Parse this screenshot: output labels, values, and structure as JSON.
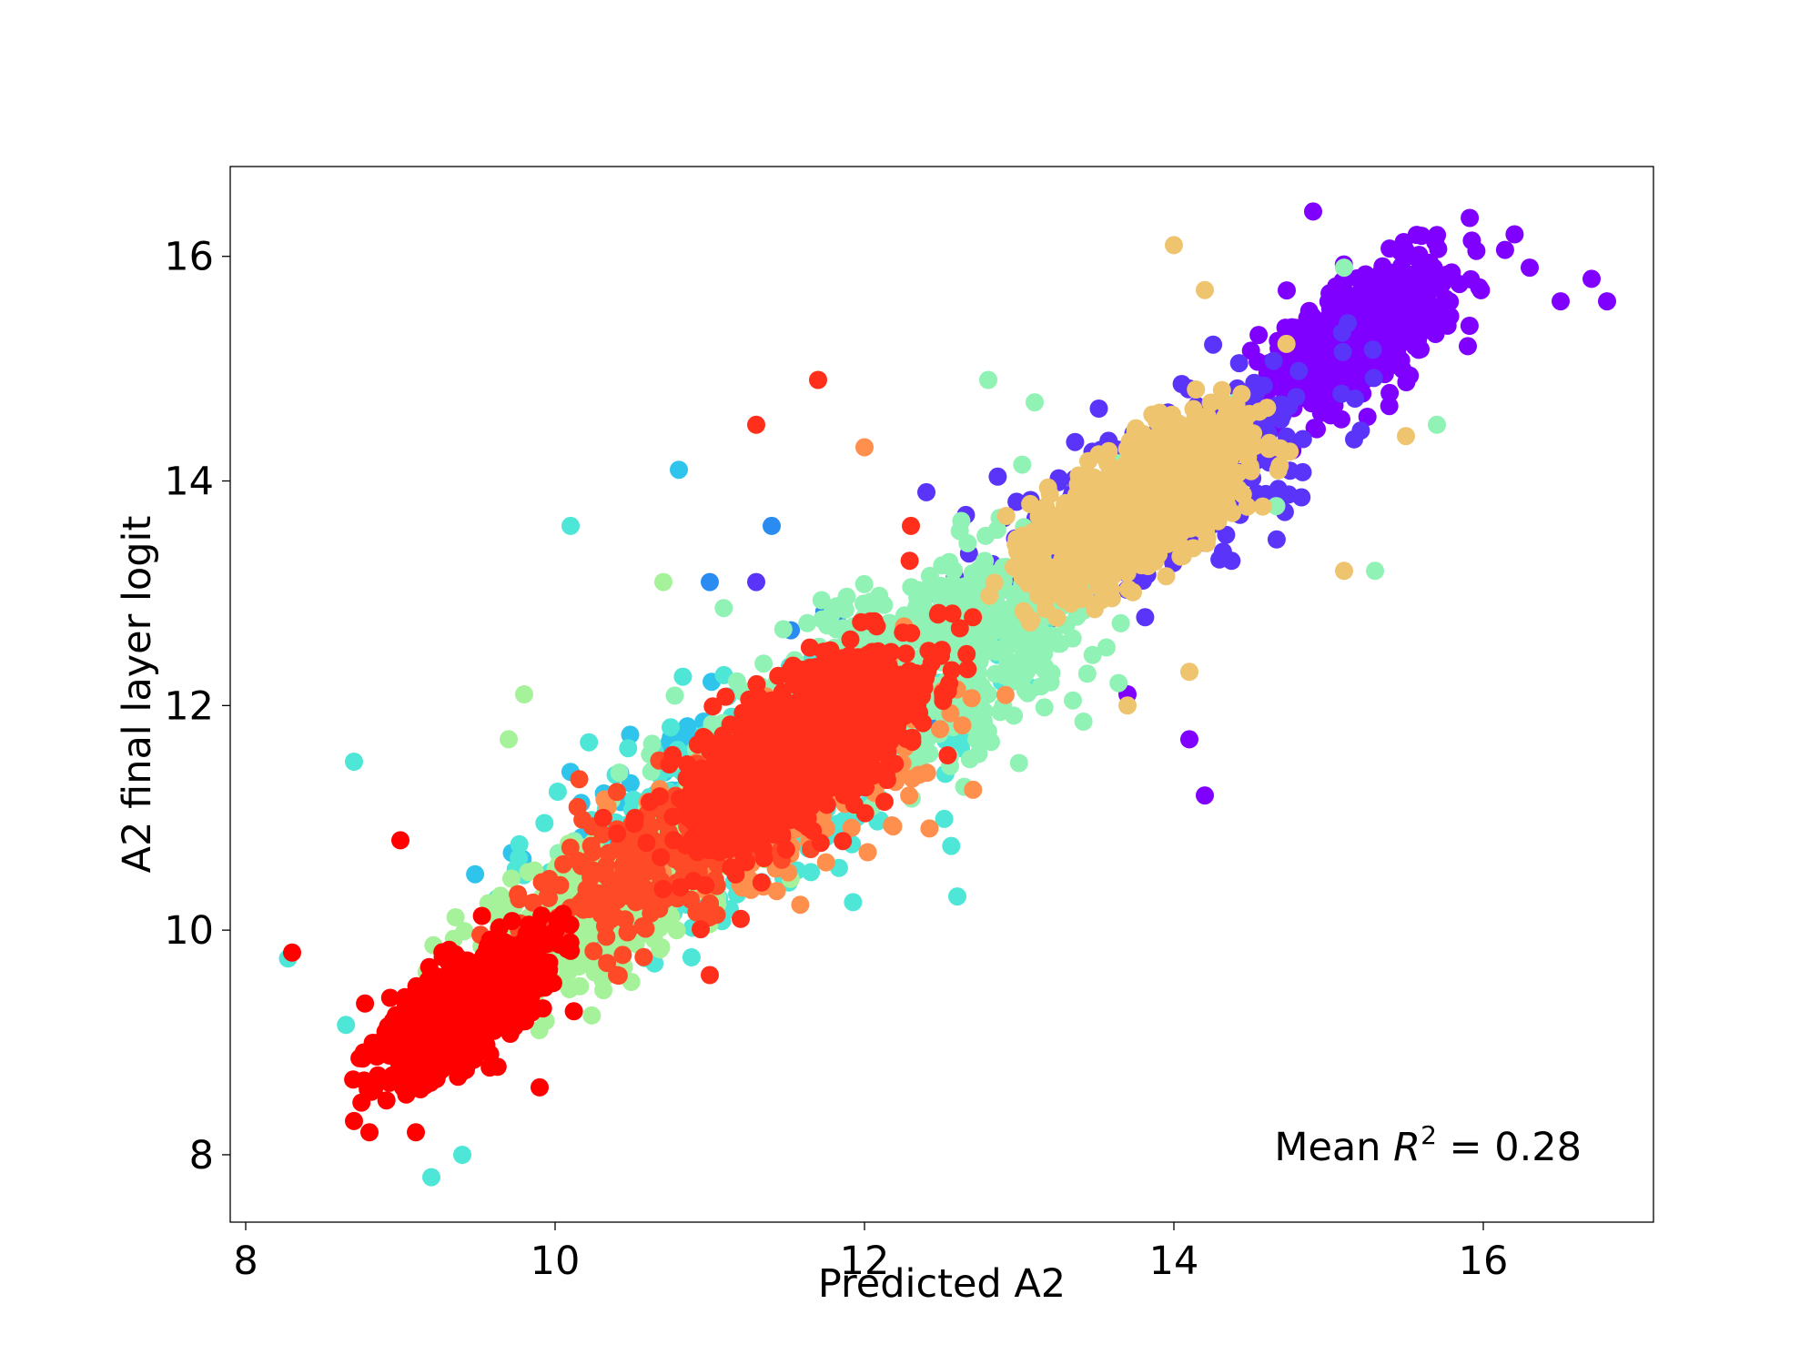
{
  "chart_data": {
    "type": "scatter",
    "title": "",
    "xlabel": "Predicted A2",
    "ylabel": "A2 final layer logit",
    "xlim": [
      7.9,
      17.1
    ],
    "ylim": [
      7.4,
      16.8
    ],
    "xticks": [
      8,
      10,
      12,
      14,
      16
    ],
    "yticks": [
      8,
      10,
      12,
      14,
      16
    ],
    "grid": false,
    "legend": "none",
    "annotation": {
      "prefix": "Mean ",
      "symbol": "R",
      "exponent": "2",
      "suffix": " = 0.28",
      "placement": "bottom-right"
    },
    "series": [
      {
        "color": "#7f00ff",
        "cx": 15.2,
        "cy": 15.3,
        "sx": 0.36,
        "sy": 0.4,
        "n": 700,
        "extremes": [
          [
            16.3,
            15.9
          ],
          [
            16.5,
            15.6
          ],
          [
            16.7,
            15.8
          ],
          [
            16.8,
            15.6
          ],
          [
            14.2,
            11.2
          ],
          [
            14.1,
            11.7
          ],
          [
            13.7,
            12.1
          ],
          [
            14.9,
            16.4
          ],
          [
            15.9,
            15.2
          ]
        ]
      },
      {
        "color": "#5a34f8",
        "cx": 13.9,
        "cy": 13.9,
        "sx": 0.6,
        "sy": 0.6,
        "n": 350,
        "extremes": [
          [
            12.4,
            13.9
          ],
          [
            11.9,
            12.4
          ],
          [
            11.3,
            13.1
          ]
        ]
      },
      {
        "color": "#2a8cf0",
        "cx": 11.8,
        "cy": 11.9,
        "sx": 0.55,
        "sy": 0.55,
        "n": 60,
        "extremes": [
          [
            11.0,
            13.1
          ],
          [
            11.4,
            13.6
          ]
        ]
      },
      {
        "color": "#2fc4ec",
        "cx": 11.0,
        "cy": 11.3,
        "sx": 0.6,
        "sy": 0.6,
        "n": 120,
        "extremes": [
          [
            10.8,
            14.1
          ]
        ]
      },
      {
        "color": "#4de6d7",
        "cx": 11.3,
        "cy": 11.2,
        "sx": 0.75,
        "sy": 0.7,
        "n": 380,
        "extremes": [
          [
            8.7,
            11.5
          ],
          [
            10.1,
            13.6
          ],
          [
            9.2,
            7.8
          ],
          [
            9.4,
            8.0
          ],
          [
            12.6,
            10.3
          ]
        ]
      },
      {
        "color": "#90f2b5",
        "cx": 12.3,
        "cy": 12.3,
        "sx": 0.8,
        "sy": 0.75,
        "n": 650,
        "extremes": [
          [
            12.8,
            14.9
          ],
          [
            13.1,
            14.7
          ],
          [
            14.4,
            14.7
          ],
          [
            15.1,
            15.9
          ],
          [
            15.3,
            13.2
          ],
          [
            15.7,
            14.5
          ]
        ]
      },
      {
        "color": "#a6f29a",
        "cx": 10.3,
        "cy": 10.2,
        "sx": 0.5,
        "sy": 0.5,
        "n": 450,
        "extremes": [
          [
            9.7,
            11.7
          ],
          [
            9.8,
            12.1
          ],
          [
            10.7,
            13.1
          ]
        ]
      },
      {
        "color": "#eec46e",
        "cx": 13.8,
        "cy": 13.8,
        "sx": 0.38,
        "sy": 0.42,
        "n": 1100,
        "extremes": [
          [
            14.0,
            16.1
          ],
          [
            14.2,
            15.7
          ],
          [
            14.1,
            12.3
          ],
          [
            13.7,
            12.0
          ],
          [
            15.1,
            13.2
          ],
          [
            15.5,
            14.4
          ]
        ]
      },
      {
        "color": "#ff8f4d",
        "cx": 11.6,
        "cy": 11.3,
        "sx": 0.6,
        "sy": 0.55,
        "n": 250,
        "extremes": [
          [
            12.0,
            14.3
          ]
        ]
      },
      {
        "color": "#ff4a28",
        "cx": 10.6,
        "cy": 10.6,
        "sx": 0.5,
        "sy": 0.5,
        "n": 220,
        "extremes": [
          [
            10.1,
            10.2
          ],
          [
            10.4,
            9.6
          ]
        ]
      },
      {
        "color": "#ff2f1c",
        "cx": 11.6,
        "cy": 11.6,
        "sx": 0.45,
        "sy": 0.5,
        "n": 1100,
        "extremes": [
          [
            11.7,
            14.9
          ],
          [
            11.3,
            14.5
          ],
          [
            12.3,
            13.6
          ],
          [
            11.2,
            10.1
          ],
          [
            11.0,
            9.6
          ]
        ]
      },
      {
        "color": "#ff0000",
        "cx": 9.4,
        "cy": 9.3,
        "sx": 0.3,
        "sy": 0.35,
        "n": 900,
        "extremes": [
          [
            8.3,
            9.8
          ],
          [
            8.7,
            8.3
          ],
          [
            8.8,
            8.2
          ],
          [
            9.0,
            10.8
          ],
          [
            9.1,
            8.2
          ],
          [
            9.9,
            8.6
          ]
        ]
      }
    ]
  }
}
